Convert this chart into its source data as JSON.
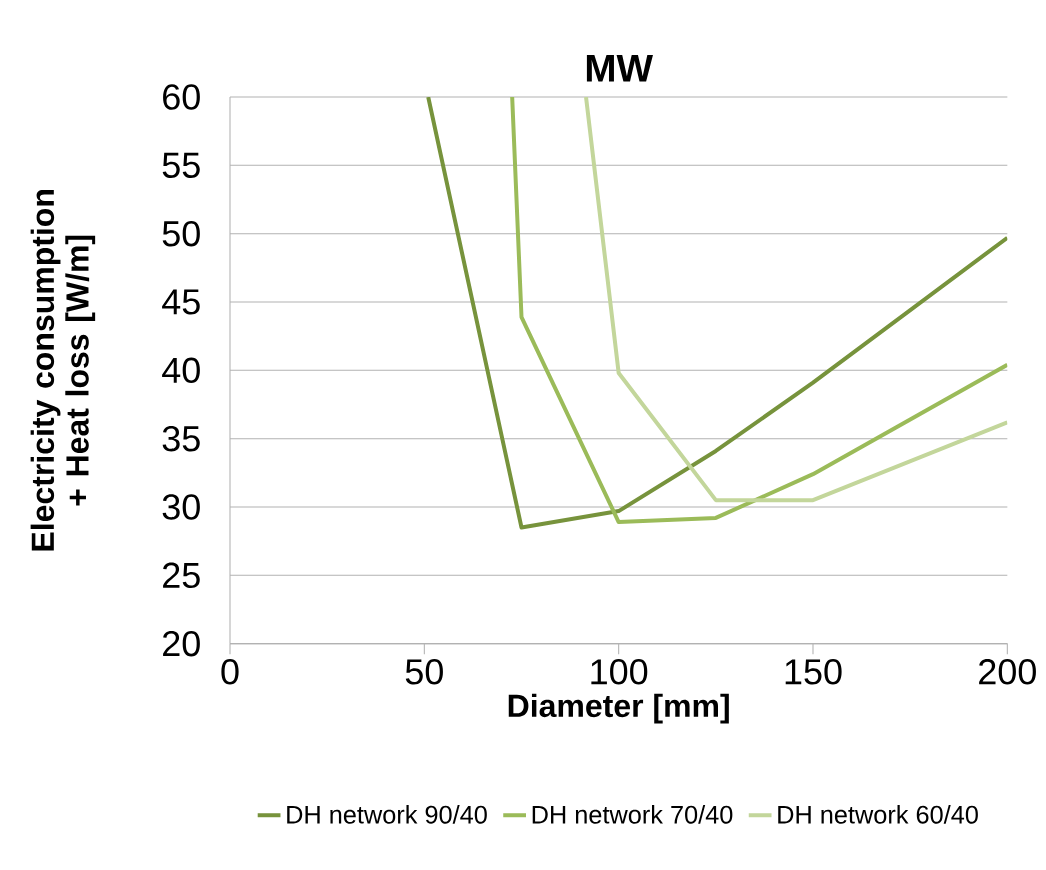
{
  "chart_data": {
    "type": "line",
    "title": "MW",
    "xlabel": "Diameter [mm]",
    "ylabel": "Electricity consumption + Heat loss [W/m]",
    "xlim": [
      0,
      200
    ],
    "xticks": [
      0,
      50,
      100,
      150,
      200
    ],
    "ylim": [
      20,
      60
    ],
    "yticks": [
      20,
      25,
      30,
      35,
      40,
      45,
      50,
      55,
      60
    ],
    "grid": "y",
    "legend": "bottom",
    "series": [
      {
        "name": "DH network 90/40",
        "color": "#77933c",
        "x": [
          51,
          75,
          100,
          125,
          150,
          200
        ],
        "values": [
          60,
          28.5,
          29.7,
          34.1,
          39.1,
          49.7
        ]
      },
      {
        "name": "DH network 70/40",
        "color": "#9bbb59",
        "x": [
          72.6,
          75,
          100,
          125,
          150,
          200
        ],
        "values": [
          60,
          43.9,
          28.9,
          29.2,
          32.4,
          40.4
        ]
      },
      {
        "name": "DH network 60/40",
        "color": "#c3d69b",
        "x": [
          91.6,
          100,
          125,
          150,
          200
        ],
        "values": [
          60,
          39.8,
          30.5,
          30.5,
          36.2
        ]
      }
    ]
  }
}
